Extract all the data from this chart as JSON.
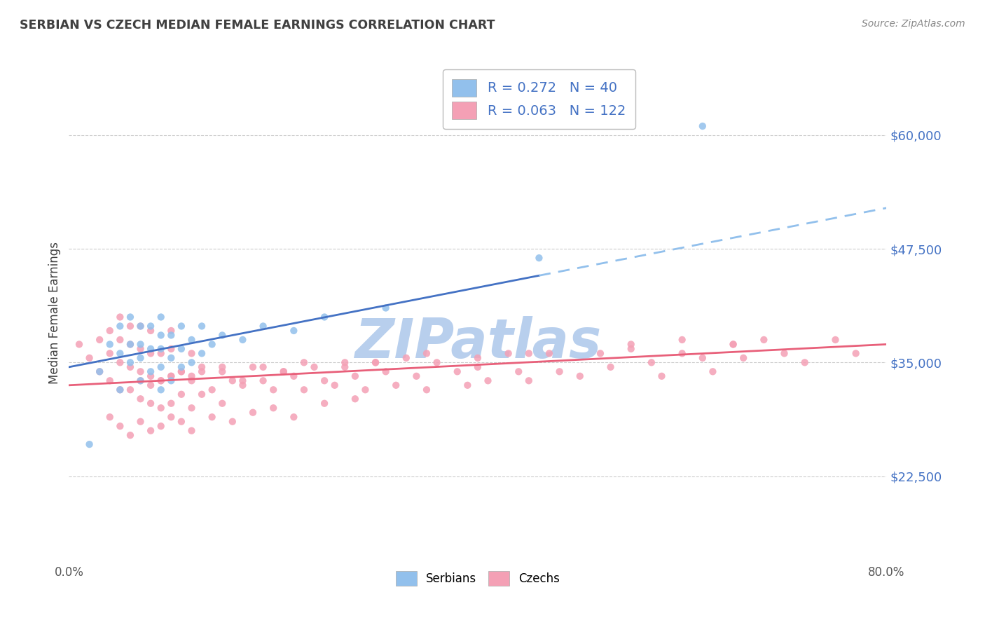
{
  "title": "SERBIAN VS CZECH MEDIAN FEMALE EARNINGS CORRELATION CHART",
  "source_text": "Source: ZipAtlas.com",
  "ylabel": "Median Female Earnings",
  "xlim": [
    0.0,
    0.8
  ],
  "ylim": [
    13000,
    68000
  ],
  "yticks": [
    22500,
    35000,
    47500,
    60000
  ],
  "ytick_labels": [
    "$22,500",
    "$35,000",
    "$47,500",
    "$60,000"
  ],
  "serbian_R": 0.272,
  "serbian_N": 40,
  "czech_R": 0.063,
  "czech_N": 122,
  "serbian_color": "#92C0EC",
  "czech_color": "#F4A0B5",
  "trend_serbian_solid_color": "#4472C4",
  "trend_serbian_dash_color": "#92C0EC",
  "trend_czech_color": "#E8607A",
  "watermark": "ZIPatlas",
  "watermark_color": "#B8CFED",
  "background_color": "#FFFFFF",
  "grid_color": "#CCCCCC",
  "axis_label_color": "#4472C4",
  "title_color": "#404040",
  "source_color": "#888888",
  "ylabel_color": "#404040",
  "serbian_x": [
    0.02,
    0.03,
    0.04,
    0.05,
    0.05,
    0.05,
    0.06,
    0.06,
    0.06,
    0.07,
    0.07,
    0.07,
    0.07,
    0.08,
    0.08,
    0.08,
    0.09,
    0.09,
    0.09,
    0.09,
    0.09,
    0.1,
    0.1,
    0.1,
    0.11,
    0.11,
    0.11,
    0.12,
    0.12,
    0.13,
    0.13,
    0.14,
    0.15,
    0.17,
    0.19,
    0.22,
    0.25,
    0.31,
    0.46,
    0.62
  ],
  "serbian_y": [
    26000,
    34000,
    37000,
    32000,
    36000,
    39000,
    35000,
    37000,
    40000,
    33000,
    35500,
    37000,
    39000,
    34000,
    36500,
    39000,
    32000,
    34500,
    36500,
    38000,
    40000,
    33000,
    35500,
    38000,
    34500,
    36500,
    39000,
    35000,
    37500,
    36000,
    39000,
    37000,
    38000,
    37500,
    39000,
    38500,
    40000,
    41000,
    46500,
    61000
  ],
  "czech_x": [
    0.01,
    0.02,
    0.03,
    0.03,
    0.04,
    0.04,
    0.04,
    0.05,
    0.05,
    0.05,
    0.05,
    0.06,
    0.06,
    0.06,
    0.06,
    0.07,
    0.07,
    0.07,
    0.07,
    0.08,
    0.08,
    0.08,
    0.08,
    0.09,
    0.09,
    0.09,
    0.1,
    0.1,
    0.1,
    0.1,
    0.11,
    0.11,
    0.12,
    0.12,
    0.12,
    0.13,
    0.13,
    0.14,
    0.15,
    0.15,
    0.16,
    0.17,
    0.18,
    0.19,
    0.2,
    0.21,
    0.22,
    0.23,
    0.24,
    0.25,
    0.26,
    0.27,
    0.28,
    0.29,
    0.3,
    0.31,
    0.32,
    0.33,
    0.34,
    0.35,
    0.36,
    0.38,
    0.39,
    0.4,
    0.41,
    0.43,
    0.44,
    0.45,
    0.47,
    0.48,
    0.5,
    0.52,
    0.53,
    0.55,
    0.57,
    0.58,
    0.6,
    0.62,
    0.63,
    0.65,
    0.66,
    0.68,
    0.7,
    0.72,
    0.75,
    0.77,
    0.04,
    0.05,
    0.06,
    0.07,
    0.08,
    0.09,
    0.1,
    0.11,
    0.12,
    0.14,
    0.16,
    0.18,
    0.2,
    0.22,
    0.25,
    0.28,
    0.07,
    0.08,
    0.09,
    0.1,
    0.11,
    0.12,
    0.13,
    0.15,
    0.17,
    0.19,
    0.21,
    0.23,
    0.27,
    0.3,
    0.35,
    0.4,
    0.45,
    0.55,
    0.6,
    0.65
  ],
  "czech_y": [
    37000,
    35500,
    34000,
    37500,
    33000,
    36000,
    38500,
    32000,
    35000,
    37500,
    40000,
    32000,
    34500,
    37000,
    39000,
    31000,
    34000,
    36500,
    39000,
    30500,
    33500,
    36000,
    38500,
    30000,
    33000,
    36000,
    30500,
    33500,
    36500,
    38500,
    31500,
    34000,
    30000,
    33000,
    36000,
    31500,
    34500,
    32000,
    30500,
    34000,
    33000,
    32500,
    34500,
    33000,
    32000,
    34000,
    33500,
    32000,
    34500,
    33000,
    32500,
    35000,
    33500,
    32000,
    35000,
    34000,
    32500,
    35500,
    33500,
    32000,
    35000,
    34000,
    32500,
    35500,
    33000,
    36000,
    34000,
    33000,
    36000,
    34000,
    33500,
    36000,
    34500,
    37000,
    35000,
    33500,
    37500,
    35500,
    34000,
    37000,
    35500,
    37500,
    36000,
    35000,
    37500,
    36000,
    29000,
    28000,
    27000,
    28500,
    27500,
    28000,
    29000,
    28500,
    27500,
    29000,
    28500,
    29500,
    30000,
    29000,
    30500,
    31000,
    33000,
    32500,
    33000,
    33500,
    34000,
    33500,
    34000,
    34500,
    33000,
    34500,
    34000,
    35000,
    34500,
    35000,
    36000,
    34500,
    36000,
    36500,
    36000,
    37000
  ],
  "trend_serbian_x0": 0.0,
  "trend_serbian_y0": 34500,
  "trend_serbian_x1": 0.8,
  "trend_serbian_y1": 52000,
  "trend_serbian_solid_end": 0.46,
  "trend_czech_x0": 0.0,
  "trend_czech_y0": 32500,
  "trend_czech_x1": 0.8,
  "trend_czech_y1": 37000
}
